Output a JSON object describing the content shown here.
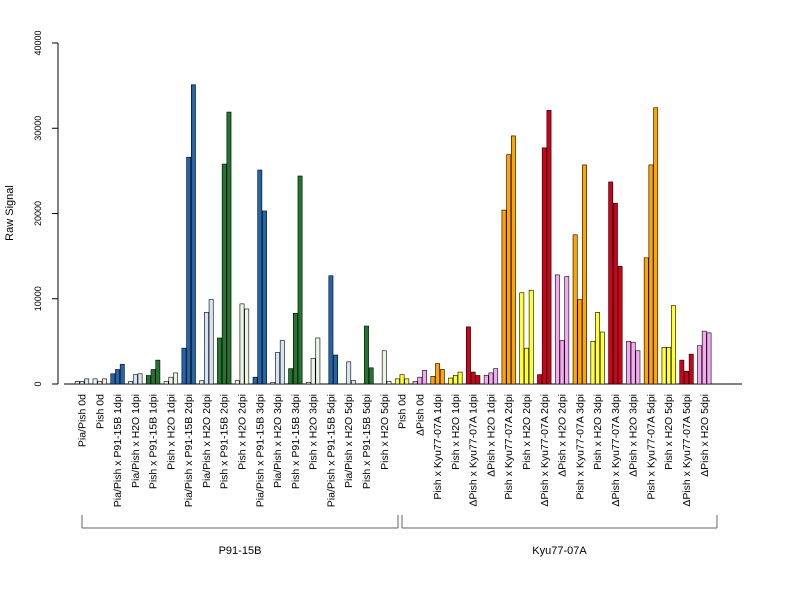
{
  "chart_data": {
    "type": "bar",
    "ylabel": "Raw Signal",
    "ylim": [
      0,
      40000
    ],
    "yticks": [
      0,
      10000,
      20000,
      30000,
      40000
    ],
    "groups": [
      {
        "label": "P91-15B",
        "from_index": 0,
        "to_index": 17
      },
      {
        "label": "Kyu77-07A",
        "from_index": 18,
        "to_index": 35
      }
    ],
    "categories": [
      {
        "label": "Pia/Pish 0d",
        "color": "#d6e4f5",
        "values": [
          300,
          300,
          600
        ]
      },
      {
        "label": "Pish 0d",
        "color": "#f0f0f0",
        "values": [
          600,
          300,
          600
        ]
      },
      {
        "label": "Pia/Pish x P91-15B 1dpi",
        "color": "#2364aa",
        "values": [
          1200,
          1700,
          2300
        ]
      },
      {
        "label": "Pia/Pish x H2O 1dpi",
        "color": "#d6e4f5",
        "values": [
          300,
          1100,
          1200
        ]
      },
      {
        "label": "Pish x P91-15B 1dpi",
        "color": "#22742e",
        "values": [
          1000,
          1700,
          2800
        ]
      },
      {
        "label": "Pish x H2O 1dpi",
        "color": "#eaf5e8",
        "values": [
          300,
          800,
          1300
        ]
      },
      {
        "label": "Pia/Pish x P91-15B 2dpi",
        "color": "#2364aa",
        "values": [
          4200,
          26600,
          35100
        ]
      },
      {
        "label": "Pia/Pish x H2O 2dpi",
        "color": "#d6e4f5",
        "values": [
          400,
          8400,
          9900
        ]
      },
      {
        "label": "Pish x P91-15B 2dpi",
        "color": "#22742e",
        "values": [
          5400,
          25800,
          31900
        ]
      },
      {
        "label": "Pish x H2O 2dpi",
        "color": "#eaf5e8",
        "values": [
          400,
          9400,
          8800
        ]
      },
      {
        "label": "Pia/Pish x P91-15B 3dpi",
        "color": "#2364aa",
        "values": [
          800,
          25100,
          20300
        ]
      },
      {
        "label": "Pia/Pish x H2O 3dpi",
        "color": "#d6e4f5",
        "values": [
          200,
          3700,
          5100
        ]
      },
      {
        "label": "Pish x P91-15B 3dpi",
        "color": "#22742e",
        "values": [
          1800,
          8300,
          24400
        ]
      },
      {
        "label": "Pish x H2O 3dpi",
        "color": "#eaf5e8",
        "values": [
          200,
          3000,
          5400
        ]
      },
      {
        "label": "Pia/Pish x P91-15B 5dpi",
        "color": "#2364aa",
        "values": [
          0,
          12700,
          3400
        ]
      },
      {
        "label": "Pia/Pish x H2O 5dpi",
        "color": "#d6e4f5",
        "values": [
          0,
          2600,
          400
        ]
      },
      {
        "label": "Pish x P91-15B 5dpi",
        "color": "#22742e",
        "values": [
          0,
          6800,
          1900
        ]
      },
      {
        "label": "Pish x H2O 5dpi",
        "color": "#eaf5e8",
        "values": [
          0,
          3900,
          300
        ]
      },
      {
        "label": "Pish 0d",
        "color": "#ffff33",
        "values": [
          600,
          1100,
          600
        ]
      },
      {
        "label": "ΔPish 0d",
        "color": "#f5a9f0",
        "values": [
          300,
          800,
          1600
        ]
      },
      {
        "label": "Pish x Kyu77-07A 1dpi",
        "color": "#ffa500",
        "values": [
          900,
          2400,
          1700
        ]
      },
      {
        "label": "Pish x H2O 1dpi",
        "color": "#ffff33",
        "values": [
          700,
          1000,
          1400
        ]
      },
      {
        "label": "ΔPish x Kyu77-07A 1dpi",
        "color": "#d0021b",
        "values": [
          6700,
          1400,
          1000
        ]
      },
      {
        "label": "ΔPish x H2O 1dpi",
        "color": "#f5a9f0",
        "values": [
          1000,
          1300,
          1800
        ]
      },
      {
        "label": "Pish x Kyu77-07A 2dpi",
        "color": "#ffa500",
        "values": [
          20400,
          26900,
          29100
        ]
      },
      {
        "label": "Pish x H2O 2dpi",
        "color": "#ffff33",
        "values": [
          10700,
          4200,
          11000
        ]
      },
      {
        "label": "ΔPish x Kyu77-07A 2dpi",
        "color": "#d0021b",
        "values": [
          1100,
          27700,
          32100
        ]
      },
      {
        "label": "ΔPish x H2O 2dpi",
        "color": "#f5a9f0",
        "values": [
          12800,
          5100,
          12600
        ]
      },
      {
        "label": "Pish x Kyu77-07A 3dpi",
        "color": "#ffa500",
        "values": [
          17500,
          9900,
          25700
        ]
      },
      {
        "label": "Pish x H2O 3dpi",
        "color": "#ffff33",
        "values": [
          5000,
          8400,
          6100
        ]
      },
      {
        "label": "ΔPish x Kyu77-07A 3dpi",
        "color": "#d0021b",
        "values": [
          23700,
          21200,
          13800
        ]
      },
      {
        "label": "ΔPish x H2O 3dpi",
        "color": "#f5a9f0",
        "values": [
          5000,
          4900,
          3900
        ]
      },
      {
        "label": "Pish x Kyu77-07A 5dpi",
        "color": "#ffa500",
        "values": [
          14800,
          25700,
          32400
        ]
      },
      {
        "label": "Pish x H2O 5dpi",
        "color": "#ffff33",
        "values": [
          4300,
          4300,
          9200
        ]
      },
      {
        "label": "ΔPish x Kyu77-07A 5dpi",
        "color": "#d0021b",
        "values": [
          2800,
          1500,
          3500
        ]
      },
      {
        "label": "ΔPish x H2O 5dpi",
        "color": "#f5a9f0",
        "values": [
          4500,
          6200,
          6000
        ]
      }
    ]
  }
}
